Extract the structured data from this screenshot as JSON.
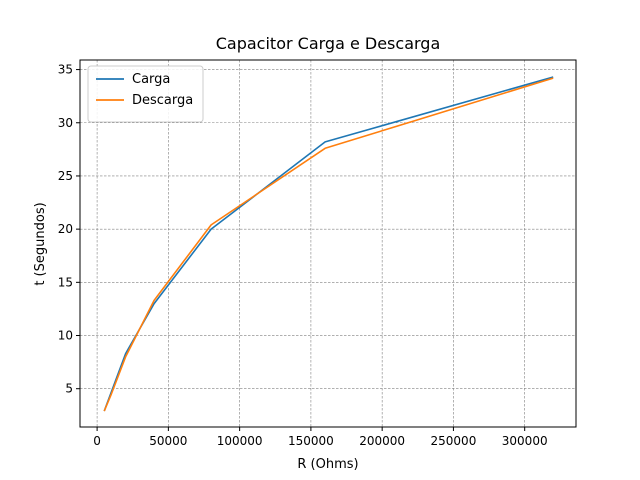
{
  "chart_data": {
    "type": "line",
    "title": "Capacitor Carga e Descarga",
    "xlabel": "R (Ohms)",
    "ylabel": "t (Segundos)",
    "xlim": [
      -12000,
      336000
    ],
    "ylim": [
      1.4,
      35.9
    ],
    "xticks": [
      0,
      50000,
      100000,
      150000,
      200000,
      250000,
      300000
    ],
    "yticks": [
      5,
      10,
      15,
      20,
      25,
      30,
      35
    ],
    "grid": true,
    "grid_style": "dashed",
    "legend_position": "upper-left",
    "series": [
      {
        "name": "Carga",
        "color": "#1f77b4",
        "x": [
          5000,
          10000,
          20000,
          40000,
          80000,
          160000,
          320000
        ],
        "y": [
          2.9,
          4.7,
          8.3,
          13.0,
          20.0,
          28.2,
          34.3
        ]
      },
      {
        "name": "Descarga",
        "color": "#ff7f0e",
        "x": [
          5000,
          10000,
          20000,
          40000,
          80000,
          160000,
          320000
        ],
        "y": [
          2.9,
          4.5,
          8.0,
          13.3,
          20.4,
          27.6,
          34.2
        ]
      }
    ]
  }
}
